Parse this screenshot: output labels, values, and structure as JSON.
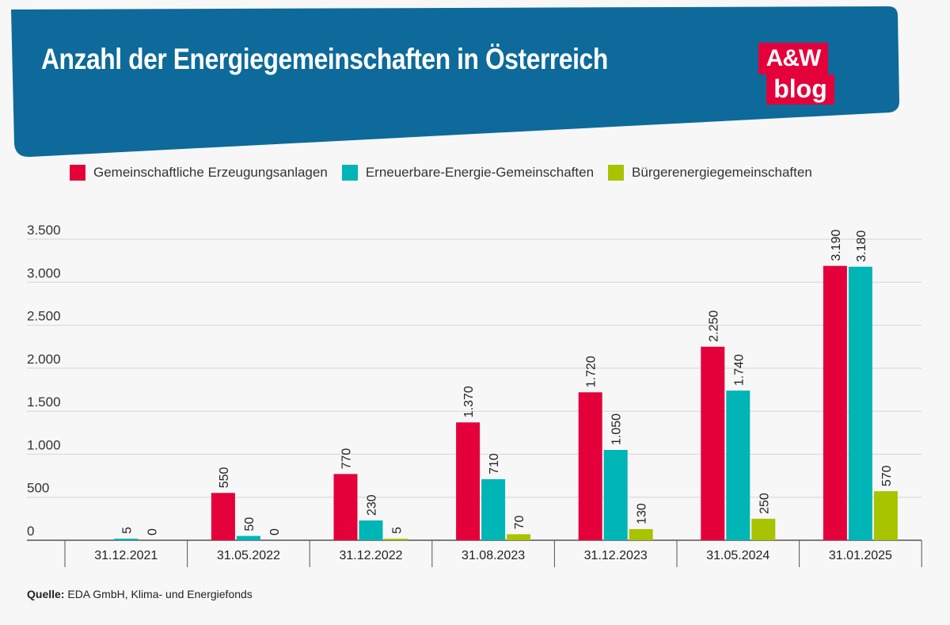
{
  "header": {
    "title": "Anzahl der Energiegemeinschaften in Österreich",
    "background_color": "#0d6a9a"
  },
  "logo": {
    "line1": "A&W",
    "line2": "blog",
    "color": "#e4003a"
  },
  "source": {
    "label": "Quelle:",
    "text": " EDA GmbH, Klima- und Energiefonds"
  },
  "chart_data": {
    "type": "bar",
    "title": "Anzahl der Energiegemeinschaften in Österreich",
    "xlabel": "",
    "ylabel": "",
    "ylim": [
      0,
      3500
    ],
    "yticks": [
      0,
      500,
      1000,
      1500,
      2000,
      2500,
      3000,
      3500
    ],
    "ytick_labels": [
      "0",
      "500",
      "1.000",
      "1.500",
      "2.000",
      "2.500",
      "3.000",
      "3.500"
    ],
    "grid": true,
    "legend_position": "top",
    "categories": [
      "31.12.2021",
      "31.05.2022",
      "31.12.2022",
      "31.08.2023",
      "31.12.2023",
      "31.05.2024",
      "31.01.2025"
    ],
    "series": [
      {
        "name": "Gemeinschaftliche Erzeugungsanlagen",
        "color": "#e4003a",
        "values": [
          null,
          550,
          770,
          1370,
          1720,
          2250,
          3190
        ],
        "labels": [
          "",
          "550",
          "770",
          "1.370",
          "1.720",
          "2.250",
          "3.190"
        ]
      },
      {
        "name": "Erneuerbare-Energie-Gemeinschaften",
        "color": "#00b5b5",
        "values": [
          5,
          50,
          230,
          710,
          1050,
          1740,
          3180
        ],
        "labels": [
          "5",
          "50",
          "230",
          "710",
          "1.050",
          "1.740",
          "3.180"
        ]
      },
      {
        "name": "Bürgerenergiegemeinschaften",
        "color": "#a8c400",
        "values": [
          0,
          0,
          5,
          70,
          130,
          250,
          570
        ],
        "labels": [
          "0",
          "0",
          "5",
          "70",
          "130",
          "250",
          "570"
        ]
      }
    ]
  }
}
